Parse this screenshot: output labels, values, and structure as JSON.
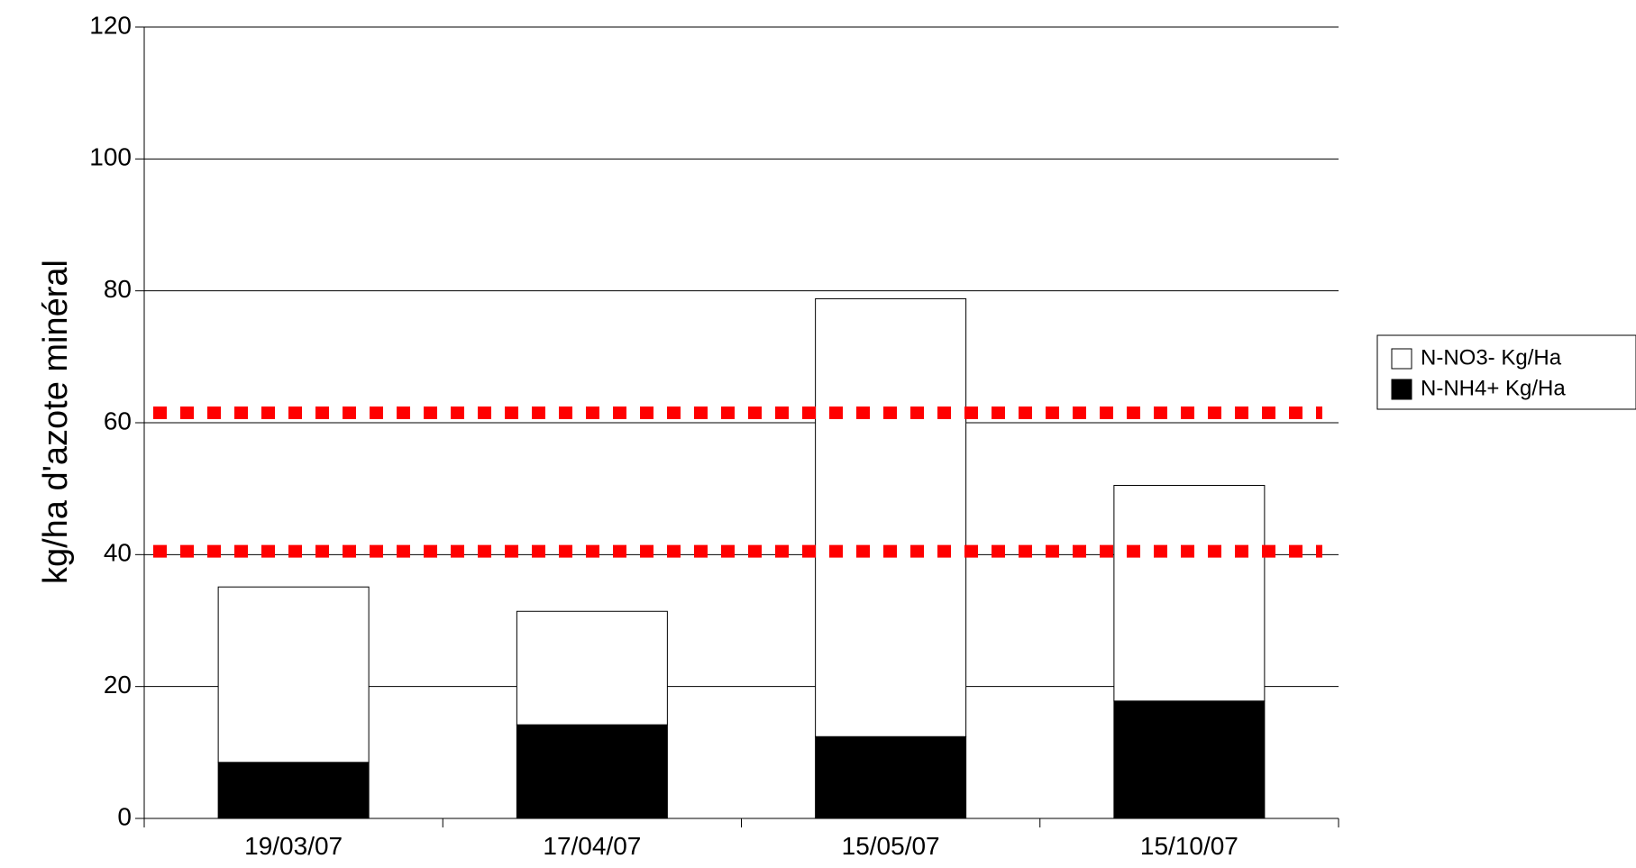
{
  "chart_data": {
    "type": "bar",
    "stacked": true,
    "title": "",
    "xlabel": "",
    "ylabel": "kg/ha d'azote minéral",
    "categories": [
      "19/03/07",
      "17/04/07",
      "15/05/07",
      "15/10/07"
    ],
    "series": [
      {
        "name": "N-NH4+ Kg/Ha",
        "values": [
          8.5,
          14.2,
          12.4,
          17.8
        ],
        "color": "#000000"
      },
      {
        "name": "N-NO3- Kg/Ha",
        "values": [
          26.6,
          17.2,
          66.4,
          32.7
        ],
        "color": "#ffffff"
      }
    ],
    "legend_order": [
      "N-NO3- Kg/Ha",
      "N-NH4+ Kg/Ha"
    ],
    "ylim": [
      0,
      120
    ],
    "yticks": [
      0,
      20,
      40,
      60,
      80,
      100,
      120
    ],
    "grid": true,
    "legend_position": "right",
    "reference_lines": [
      {
        "value": 61.5,
        "color": "#ff0000",
        "style": "dotted"
      },
      {
        "value": 40.5,
        "color": "#ff0000",
        "style": "dotted"
      }
    ]
  }
}
